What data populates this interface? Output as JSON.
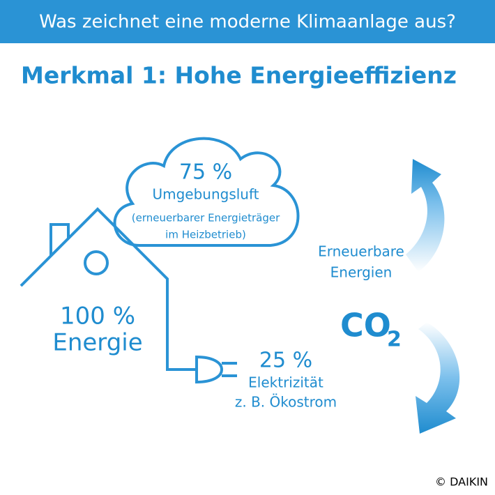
{
  "header": {
    "title": "Was zeichnet eine moderne Klimaanlage aus?"
  },
  "heading": "Merkmal 1: Hohe Energieeffizienz",
  "cloud": {
    "share": "75 %",
    "label": "Umgebungsluft",
    "note_line1": "(erneuerbarer Energieträger",
    "note_line2": "im Heizbetrieb)"
  },
  "house": {
    "share": "100 %",
    "label": "Energie"
  },
  "plug": {
    "share": "25 %",
    "label": "Elektrizität",
    "note": "z. B. Ökostrom"
  },
  "cycle": {
    "label_line1": "Erneuerbare",
    "label_line2": "Energien",
    "co": "CO",
    "subscript": "2"
  },
  "footer": {
    "copyright": "© DAIKIN"
  }
}
